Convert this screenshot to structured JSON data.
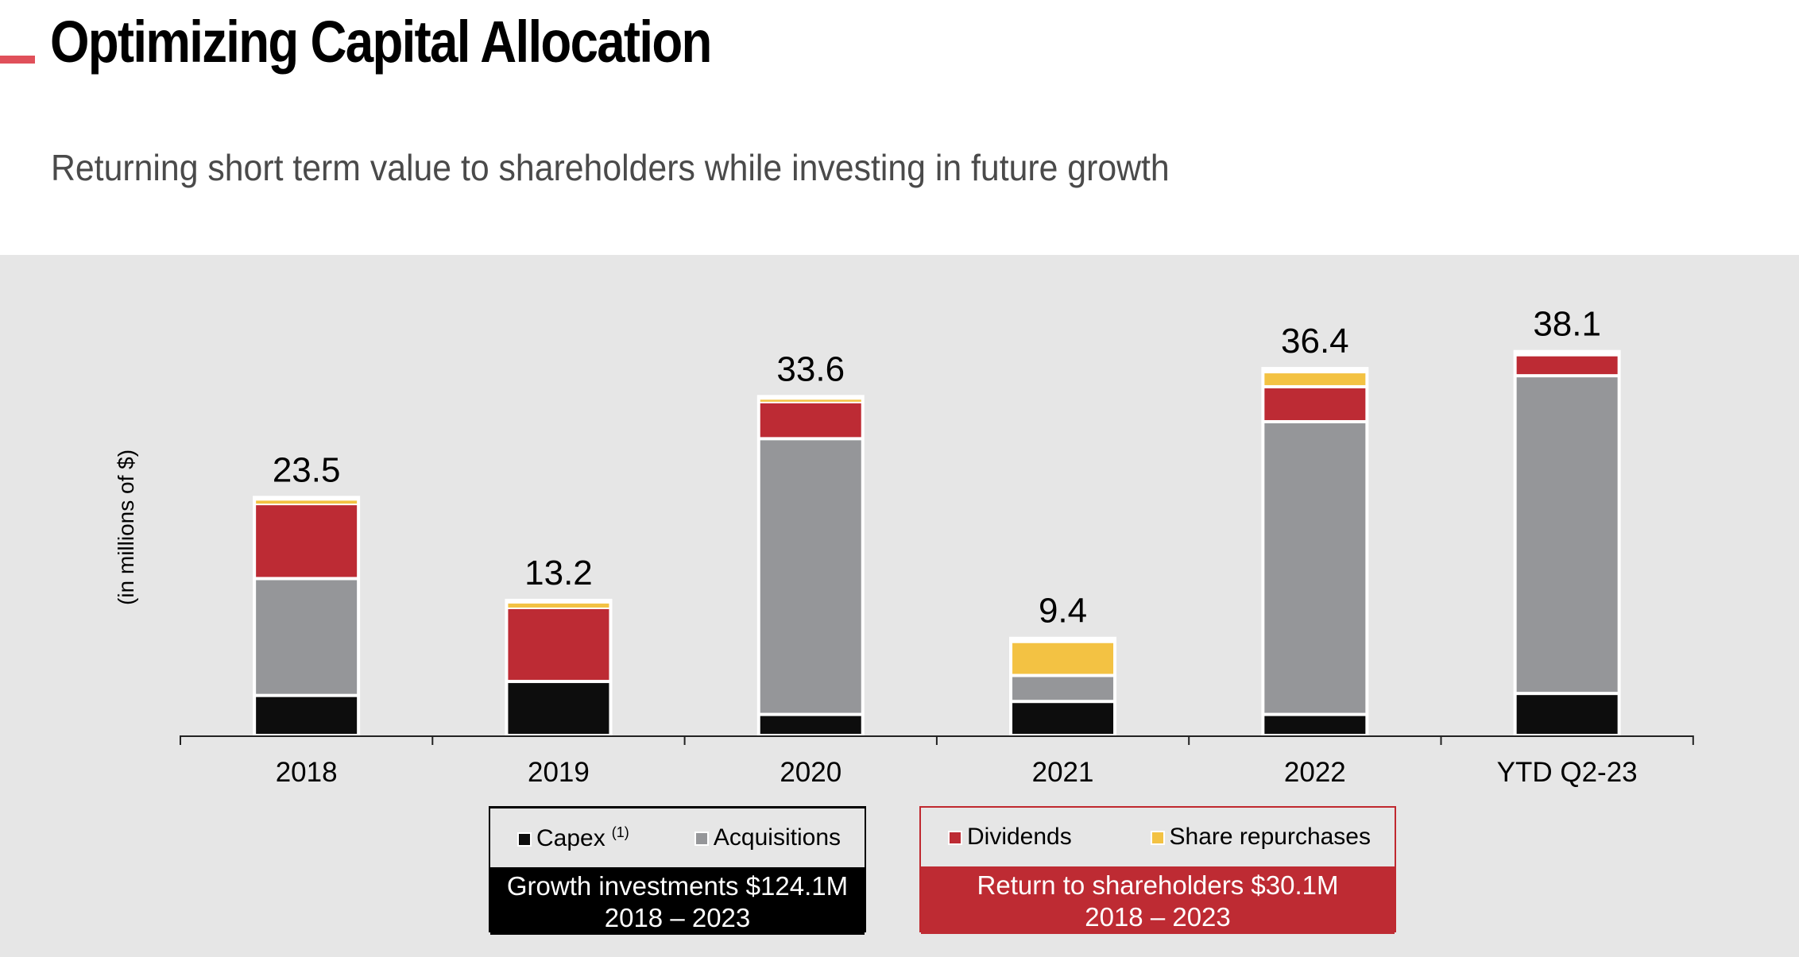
{
  "header": {
    "title": "Optimizing Capital Allocation",
    "subtitle": "Returning short term value to shareholders while investing in future growth"
  },
  "colors": {
    "capex": "#0d0d0d",
    "acquisitions": "#959699",
    "dividends": "#bd2b34",
    "share_repurchases": "#f3c243",
    "accent": "#e0505a"
  },
  "chart_data": {
    "type": "bar",
    "stacked": true,
    "title": "",
    "xlabel": "",
    "ylabel": "(in millions of $)",
    "ylim": [
      0,
      40
    ],
    "grid": false,
    "categories": [
      "2018",
      "2019",
      "2020",
      "2021",
      "2022",
      "YTD Q2-23"
    ],
    "totals": [
      "23.5",
      "13.2",
      "33.6",
      "9.4",
      "36.4",
      "38.1"
    ],
    "series": [
      {
        "name": "Capex",
        "key": "capex",
        "values": [
          4.0,
          5.4,
          2.1,
          3.4,
          2.1,
          4.2
        ]
      },
      {
        "name": "Acquisitions",
        "key": "acquisitions",
        "values": [
          11.7,
          0.0,
          27.6,
          2.6,
          29.3,
          31.8
        ]
      },
      {
        "name": "Dividends",
        "key": "dividends",
        "values": [
          7.5,
          7.4,
          3.7,
          0.0,
          3.5,
          2.1
        ]
      },
      {
        "name": "Share repurchases",
        "key": "share_repurchases",
        "values": [
          0.3,
          0.4,
          0.2,
          3.4,
          1.5,
          0.0
        ]
      }
    ]
  },
  "legend": {
    "capex": "Capex",
    "capex_footnote": "(1)",
    "acquisitions": "Acquisitions",
    "dividends": "Dividends",
    "share_repurchases": "Share repurchases",
    "growth_summary": "Growth investments $124.1M",
    "growth_period": "2018 – 2023",
    "return_summary": "Return to shareholders $30.1M",
    "return_period": "2018 – 2023"
  }
}
